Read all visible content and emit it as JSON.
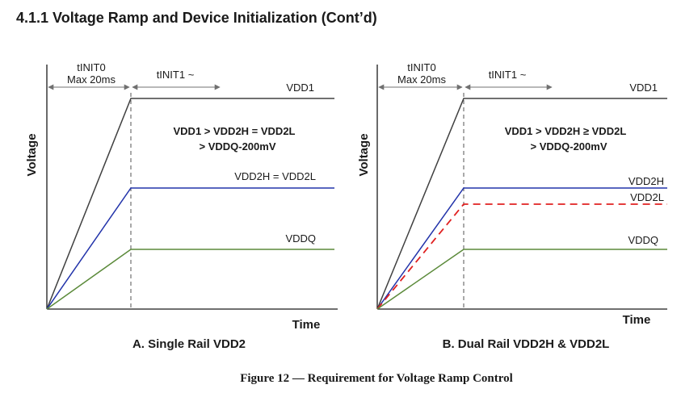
{
  "title": "4.1.1  Voltage Ramp and Device Initialization (Cont’d)",
  "colors": {
    "vdd1": "#404040",
    "vdd2h": "#2233aa",
    "vdd2l": "#e02020",
    "vddq": "#5b8a3a",
    "axis": "#1a1a1a",
    "marker": "#707070"
  },
  "panel_a": {
    "tinit0_label": "tINIT0",
    "tinit0_max": "Max 20ms",
    "tinit1_label": "tINIT1 ~",
    "y_axis_label": "Voltage",
    "x_axis_label": "Time",
    "vdd1_label": "VDD1",
    "condition_line1": "VDD1 > VDD2H = VDD2L",
    "condition_line2": "> VDDQ-200mV",
    "vdd2_label": "VDD2H = VDD2L",
    "vddq_label": "VDDQ",
    "caption": "A. Single Rail VDD2"
  },
  "panel_b": {
    "tinit0_label": "tINIT0",
    "tinit0_max": "Max 20ms",
    "tinit1_label": "tINIT1 ~",
    "y_axis_label": "Voltage",
    "x_axis_label": "Time",
    "vdd1_label": "VDD1",
    "condition_line1": "VDD1 > VDD2H ≥ VDD2L",
    "condition_line2": "> VDDQ-200mV",
    "vdd2h_label": "VDD2H",
    "vdd2l_label": "VDD2L",
    "vddq_label": "VDDQ",
    "caption": "B. Dual Rail VDD2H & VDD2L"
  },
  "figure_caption": "Figure 12 — Requirement for Voltage Ramp Control"
}
